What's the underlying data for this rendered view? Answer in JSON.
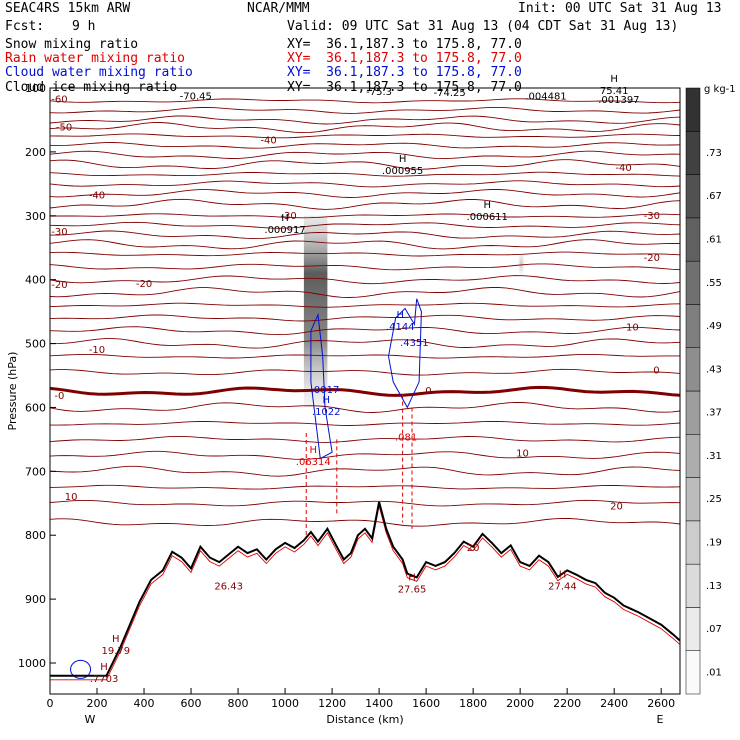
{
  "header": {
    "model": "SEAC4RS 15km ARW",
    "center": "NCAR/MMM",
    "init": "Init: 00 UTC Sat 31 Aug 13",
    "fcst_label": "Fcst:",
    "fcst_value": "9 h",
    "valid": "Valid: 09 UTC Sat 31 Aug 13 (04 CDT Sat 31 Aug 13)",
    "fields": [
      {
        "name": "Snow mixing ratio",
        "xy": "XY=  36.1,187.3 to 175.8, 77.0",
        "color": "#000000"
      },
      {
        "name": "Rain water mixing ratio",
        "xy": "XY=  36.1,187.3 to 175.8, 77.0",
        "color": "#e00000"
      },
      {
        "name": "Cloud water mixing ratio",
        "xy": "XY=  36.1,187.3 to 175.8, 77.0",
        "color": "#0010d0"
      },
      {
        "name": "Cloud ice mixing ratio",
        "xy": "XY=  36.1,187.3 to 175.8, 77.0",
        "color": "#000000"
      }
    ]
  },
  "chart_data": {
    "type": "cross-section",
    "xlabel": "Distance (km)",
    "ylabel": "Pressure (hPa)",
    "xlim": [
      0,
      2680
    ],
    "ylim": [
      1050,
      100
    ],
    "xticks": [
      0,
      200,
      400,
      600,
      800,
      1000,
      1200,
      1400,
      1600,
      1800,
      2000,
      2200,
      2400,
      2600
    ],
    "yticks": [
      100,
      200,
      300,
      400,
      500,
      600,
      700,
      800,
      900,
      1000
    ],
    "endpoints": {
      "left": "W",
      "right": "E"
    },
    "temperature_contours_C": [
      -70,
      -60,
      -50,
      -40,
      -30,
      -20,
      -10,
      0,
      10,
      20
    ],
    "temperature_labels": [
      {
        "x": 40,
        "p": 118,
        "text": "-60"
      },
      {
        "x": 60,
        "p": 162,
        "text": "-50"
      },
      {
        "x": 200,
        "p": 268,
        "text": "-40"
      },
      {
        "x": 40,
        "p": 325,
        "text": "-30"
      },
      {
        "x": 40,
        "p": 408,
        "text": "-20"
      },
      {
        "x": 40,
        "p": 582,
        "text": "-0"
      },
      {
        "x": 90,
        "p": 740,
        "text": "10"
      },
      {
        "x": 930,
        "p": 182,
        "text": "-40"
      },
      {
        "x": 1015,
        "p": 300,
        "text": "-30"
      },
      {
        "x": 400,
        "p": 407,
        "text": "-20"
      },
      {
        "x": 200,
        "p": 510,
        "text": "-10"
      },
      {
        "x": 2440,
        "p": 225,
        "text": "-40"
      },
      {
        "x": 2560,
        "p": 300,
        "text": "-30"
      },
      {
        "x": 2560,
        "p": 366,
        "text": "-20"
      },
      {
        "x": 2470,
        "p": 475,
        "text": "-10"
      },
      {
        "x": 1610,
        "p": 574,
        "text": "0"
      },
      {
        "x": 2580,
        "p": 542,
        "text": "0"
      },
      {
        "x": 2010,
        "p": 672,
        "text": "10"
      },
      {
        "x": 2410,
        "p": 755,
        "text": "20"
      },
      {
        "x": 1800,
        "p": 820,
        "text": "20"
      }
    ],
    "extrema_labels": [
      {
        "x": 620,
        "p": 113,
        "mark": "",
        "value": "-70.45"
      },
      {
        "x": 1400,
        "p": 106,
        "mark": "",
        "value": "-75.3"
      },
      {
        "x": 1700,
        "p": 108,
        "mark": "",
        "value": "-74.25"
      },
      {
        "x": 2110,
        "p": 113,
        "mark": "",
        "value": ".004481"
      },
      {
        "x": 2400,
        "p": 105,
        "mark": "H",
        "value": "75.41"
      },
      {
        "x": 2420,
        "p": 119,
        "mark": "",
        "value": ".001397"
      },
      {
        "x": 1500,
        "p": 230,
        "mark": "H",
        "value": ".000955"
      },
      {
        "x": 1860,
        "p": 302,
        "mark": "H",
        "value": ".000611"
      },
      {
        "x": 1000,
        "p": 322,
        "mark": "H",
        "value": ".000917"
      },
      {
        "x": 1490,
        "p": 474,
        "mark": "H",
        "value": ".4144"
      },
      {
        "x": 1550,
        "p": 499,
        "mark": "",
        "value": ".4351"
      },
      {
        "x": 1170,
        "p": 573,
        "mark": "",
        "value": ".0017"
      },
      {
        "x": 1175,
        "p": 607,
        "mark": "H",
        "value": ".1022"
      },
      {
        "x": 1515,
        "p": 647,
        "mark": "",
        "value": ".081"
      },
      {
        "x": 1120,
        "p": 685,
        "mark": "H",
        "value": ".06314"
      },
      {
        "x": 760,
        "p": 880,
        "mark": "",
        "value": "26.43"
      },
      {
        "x": 1540,
        "p": 885,
        "mark": "H",
        "value": "27.65"
      },
      {
        "x": 2180,
        "p": 880,
        "mark": "H",
        "value": "27.44"
      },
      {
        "x": 280,
        "p": 981,
        "mark": "H",
        "value": "19.79"
      },
      {
        "x": 230,
        "p": 1025,
        "mark": "H",
        "value": ".7703"
      }
    ],
    "terrain_profile": [
      [
        0,
        1020
      ],
      [
        130,
        1020
      ],
      [
        240,
        1020
      ],
      [
        300,
        975
      ],
      [
        380,
        905
      ],
      [
        430,
        870
      ],
      [
        480,
        855
      ],
      [
        520,
        826
      ],
      [
        560,
        835
      ],
      [
        600,
        852
      ],
      [
        640,
        818
      ],
      [
        680,
        835
      ],
      [
        720,
        842
      ],
      [
        760,
        830
      ],
      [
        800,
        818
      ],
      [
        840,
        828
      ],
      [
        880,
        822
      ],
      [
        920,
        838
      ],
      [
        960,
        822
      ],
      [
        1000,
        812
      ],
      [
        1040,
        820
      ],
      [
        1080,
        808
      ],
      [
        1110,
        795
      ],
      [
        1140,
        810
      ],
      [
        1180,
        790
      ],
      [
        1220,
        818
      ],
      [
        1250,
        838
      ],
      [
        1280,
        828
      ],
      [
        1310,
        800
      ],
      [
        1340,
        790
      ],
      [
        1370,
        805
      ],
      [
        1400,
        748
      ],
      [
        1430,
        790
      ],
      [
        1460,
        818
      ],
      [
        1500,
        838
      ],
      [
        1520,
        860
      ],
      [
        1560,
        866
      ],
      [
        1600,
        842
      ],
      [
        1640,
        848
      ],
      [
        1680,
        842
      ],
      [
        1720,
        828
      ],
      [
        1760,
        810
      ],
      [
        1800,
        818
      ],
      [
        1840,
        798
      ],
      [
        1880,
        812
      ],
      [
        1920,
        828
      ],
      [
        1960,
        816
      ],
      [
        2000,
        842
      ],
      [
        2040,
        848
      ],
      [
        2080,
        832
      ],
      [
        2120,
        842
      ],
      [
        2160,
        865
      ],
      [
        2200,
        855
      ],
      [
        2240,
        862
      ],
      [
        2280,
        870
      ],
      [
        2320,
        875
      ],
      [
        2360,
        890
      ],
      [
        2400,
        898
      ],
      [
        2440,
        910
      ],
      [
        2500,
        920
      ],
      [
        2550,
        930
      ],
      [
        2600,
        940
      ],
      [
        2650,
        955
      ],
      [
        2680,
        965
      ]
    ],
    "colorbar": {
      "units": "g kg-1",
      "labels": [
        ".01",
        ".07",
        ".13",
        ".19",
        ".25",
        ".31",
        ".37",
        ".43",
        ".49",
        ".55",
        ".61",
        ".67",
        ".73"
      ]
    },
    "colors": {
      "temperature": "#800000",
      "rain": "#e00000",
      "cloud_water": "#0010d0",
      "terrain": "#000000",
      "snow_shading": "#303030"
    }
  }
}
